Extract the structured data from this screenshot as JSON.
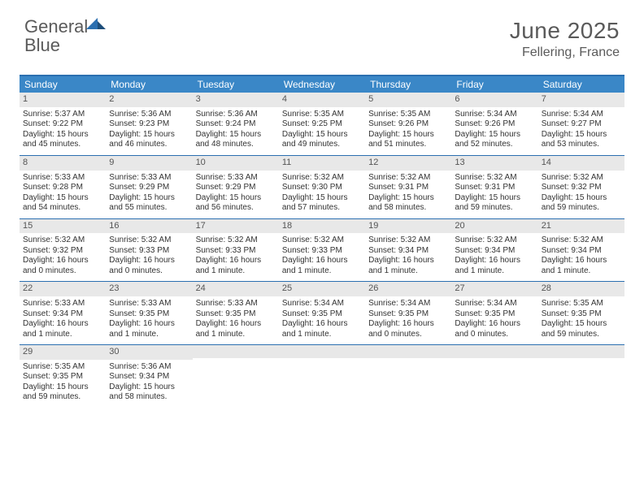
{
  "logo": {
    "word1": "General",
    "word2": "Blue"
  },
  "title": "June 2025",
  "location": "Fellering, France",
  "colors": {
    "header_bg": "#3a87c7",
    "rule": "#2b6fb0",
    "daynum_bg": "#e8e8e8",
    "text": "#333333",
    "muted": "#5a5a5a"
  },
  "day_headers": [
    "Sunday",
    "Monday",
    "Tuesday",
    "Wednesday",
    "Thursday",
    "Friday",
    "Saturday"
  ],
  "weeks": [
    [
      {
        "n": "1",
        "sunrise": "Sunrise: 5:37 AM",
        "sunset": "Sunset: 9:22 PM",
        "daylight": "Daylight: 15 hours and 45 minutes."
      },
      {
        "n": "2",
        "sunrise": "Sunrise: 5:36 AM",
        "sunset": "Sunset: 9:23 PM",
        "daylight": "Daylight: 15 hours and 46 minutes."
      },
      {
        "n": "3",
        "sunrise": "Sunrise: 5:36 AM",
        "sunset": "Sunset: 9:24 PM",
        "daylight": "Daylight: 15 hours and 48 minutes."
      },
      {
        "n": "4",
        "sunrise": "Sunrise: 5:35 AM",
        "sunset": "Sunset: 9:25 PM",
        "daylight": "Daylight: 15 hours and 49 minutes."
      },
      {
        "n": "5",
        "sunrise": "Sunrise: 5:35 AM",
        "sunset": "Sunset: 9:26 PM",
        "daylight": "Daylight: 15 hours and 51 minutes."
      },
      {
        "n": "6",
        "sunrise": "Sunrise: 5:34 AM",
        "sunset": "Sunset: 9:26 PM",
        "daylight": "Daylight: 15 hours and 52 minutes."
      },
      {
        "n": "7",
        "sunrise": "Sunrise: 5:34 AM",
        "sunset": "Sunset: 9:27 PM",
        "daylight": "Daylight: 15 hours and 53 minutes."
      }
    ],
    [
      {
        "n": "8",
        "sunrise": "Sunrise: 5:33 AM",
        "sunset": "Sunset: 9:28 PM",
        "daylight": "Daylight: 15 hours and 54 minutes."
      },
      {
        "n": "9",
        "sunrise": "Sunrise: 5:33 AM",
        "sunset": "Sunset: 9:29 PM",
        "daylight": "Daylight: 15 hours and 55 minutes."
      },
      {
        "n": "10",
        "sunrise": "Sunrise: 5:33 AM",
        "sunset": "Sunset: 9:29 PM",
        "daylight": "Daylight: 15 hours and 56 minutes."
      },
      {
        "n": "11",
        "sunrise": "Sunrise: 5:32 AM",
        "sunset": "Sunset: 9:30 PM",
        "daylight": "Daylight: 15 hours and 57 minutes."
      },
      {
        "n": "12",
        "sunrise": "Sunrise: 5:32 AM",
        "sunset": "Sunset: 9:31 PM",
        "daylight": "Daylight: 15 hours and 58 minutes."
      },
      {
        "n": "13",
        "sunrise": "Sunrise: 5:32 AM",
        "sunset": "Sunset: 9:31 PM",
        "daylight": "Daylight: 15 hours and 59 minutes."
      },
      {
        "n": "14",
        "sunrise": "Sunrise: 5:32 AM",
        "sunset": "Sunset: 9:32 PM",
        "daylight": "Daylight: 15 hours and 59 minutes."
      }
    ],
    [
      {
        "n": "15",
        "sunrise": "Sunrise: 5:32 AM",
        "sunset": "Sunset: 9:32 PM",
        "daylight": "Daylight: 16 hours and 0 minutes."
      },
      {
        "n": "16",
        "sunrise": "Sunrise: 5:32 AM",
        "sunset": "Sunset: 9:33 PM",
        "daylight": "Daylight: 16 hours and 0 minutes."
      },
      {
        "n": "17",
        "sunrise": "Sunrise: 5:32 AM",
        "sunset": "Sunset: 9:33 PM",
        "daylight": "Daylight: 16 hours and 1 minute."
      },
      {
        "n": "18",
        "sunrise": "Sunrise: 5:32 AM",
        "sunset": "Sunset: 9:33 PM",
        "daylight": "Daylight: 16 hours and 1 minute."
      },
      {
        "n": "19",
        "sunrise": "Sunrise: 5:32 AM",
        "sunset": "Sunset: 9:34 PM",
        "daylight": "Daylight: 16 hours and 1 minute."
      },
      {
        "n": "20",
        "sunrise": "Sunrise: 5:32 AM",
        "sunset": "Sunset: 9:34 PM",
        "daylight": "Daylight: 16 hours and 1 minute."
      },
      {
        "n": "21",
        "sunrise": "Sunrise: 5:32 AM",
        "sunset": "Sunset: 9:34 PM",
        "daylight": "Daylight: 16 hours and 1 minute."
      }
    ],
    [
      {
        "n": "22",
        "sunrise": "Sunrise: 5:33 AM",
        "sunset": "Sunset: 9:34 PM",
        "daylight": "Daylight: 16 hours and 1 minute."
      },
      {
        "n": "23",
        "sunrise": "Sunrise: 5:33 AM",
        "sunset": "Sunset: 9:35 PM",
        "daylight": "Daylight: 16 hours and 1 minute."
      },
      {
        "n": "24",
        "sunrise": "Sunrise: 5:33 AM",
        "sunset": "Sunset: 9:35 PM",
        "daylight": "Daylight: 16 hours and 1 minute."
      },
      {
        "n": "25",
        "sunrise": "Sunrise: 5:34 AM",
        "sunset": "Sunset: 9:35 PM",
        "daylight": "Daylight: 16 hours and 1 minute."
      },
      {
        "n": "26",
        "sunrise": "Sunrise: 5:34 AM",
        "sunset": "Sunset: 9:35 PM",
        "daylight": "Daylight: 16 hours and 0 minutes."
      },
      {
        "n": "27",
        "sunrise": "Sunrise: 5:34 AM",
        "sunset": "Sunset: 9:35 PM",
        "daylight": "Daylight: 16 hours and 0 minutes."
      },
      {
        "n": "28",
        "sunrise": "Sunrise: 5:35 AM",
        "sunset": "Sunset: 9:35 PM",
        "daylight": "Daylight: 15 hours and 59 minutes."
      }
    ],
    [
      {
        "n": "29",
        "sunrise": "Sunrise: 5:35 AM",
        "sunset": "Sunset: 9:35 PM",
        "daylight": "Daylight: 15 hours and 59 minutes."
      },
      {
        "n": "30",
        "sunrise": "Sunrise: 5:36 AM",
        "sunset": "Sunset: 9:34 PM",
        "daylight": "Daylight: 15 hours and 58 minutes."
      },
      {
        "empty": true
      },
      {
        "empty": true
      },
      {
        "empty": true
      },
      {
        "empty": true
      },
      {
        "empty": true
      }
    ]
  ]
}
